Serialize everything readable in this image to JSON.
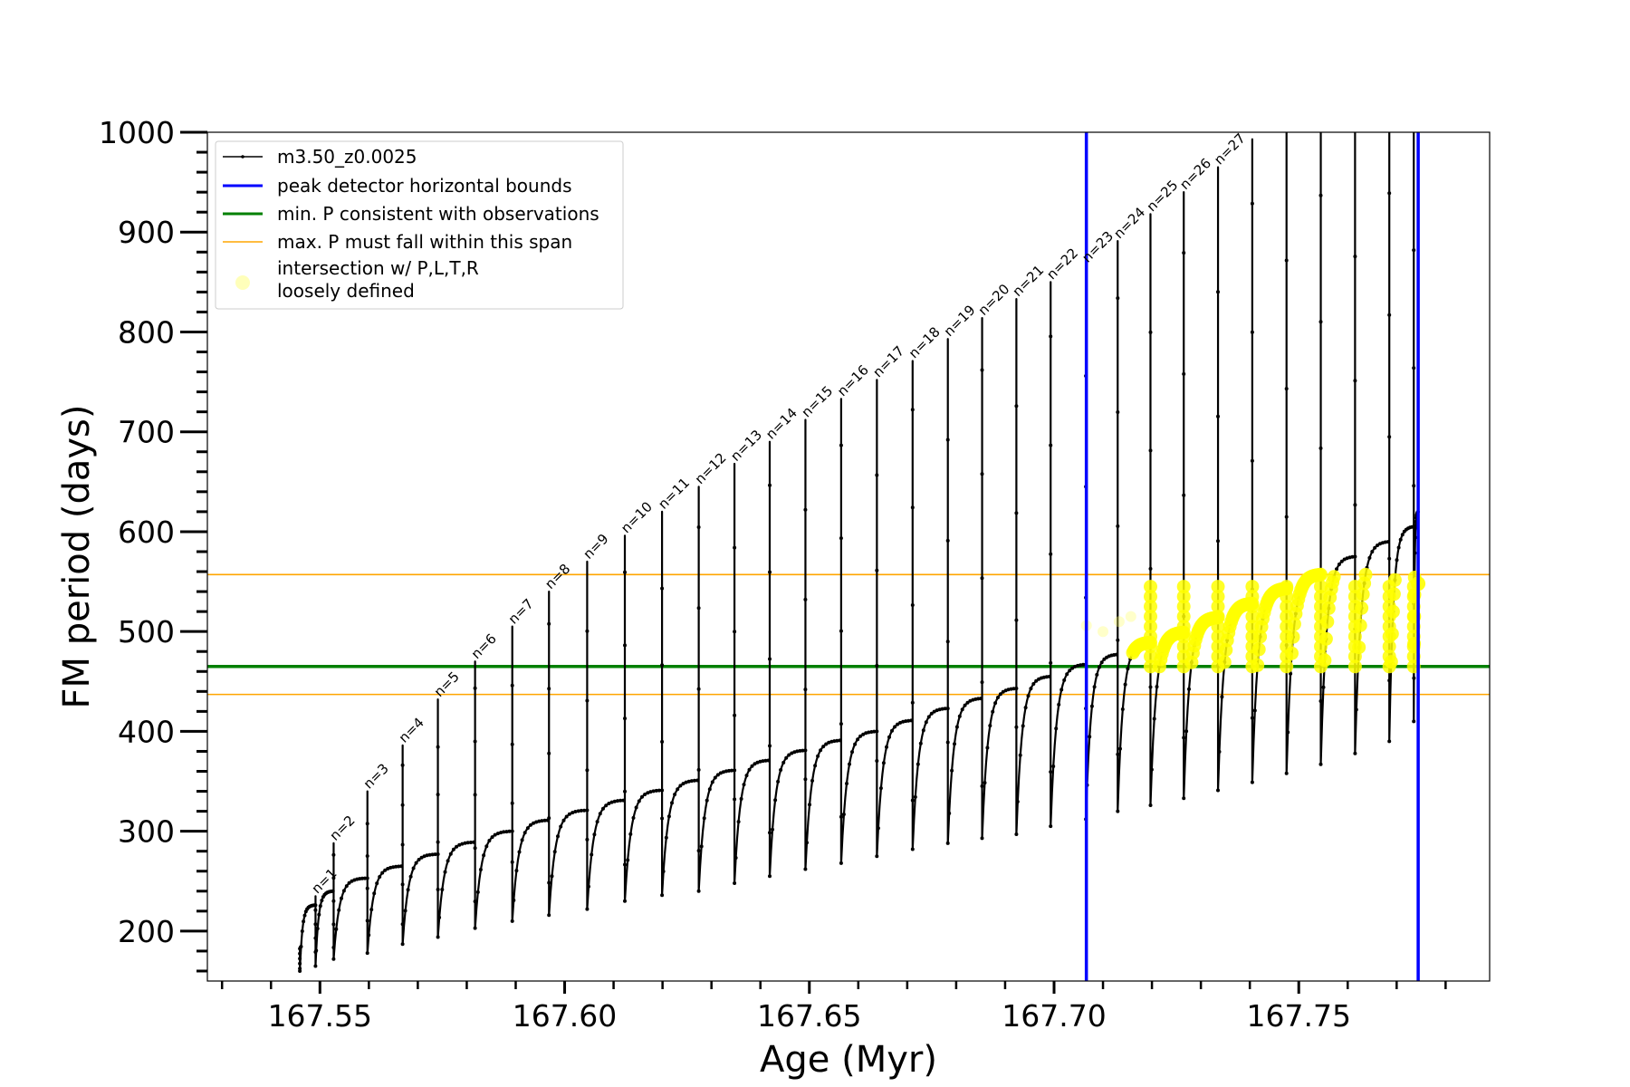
{
  "chart_data": {
    "type": "line",
    "title": "",
    "xlabel": "Age (Myr)",
    "ylabel": "FM period (days)",
    "xlim": [
      167.527,
      167.789
    ],
    "ylim": [
      150,
      1000
    ],
    "x_ticks": [
      "167.55",
      "167.60",
      "167.65",
      "167.70",
      "167.75"
    ],
    "y_ticks": [
      "200",
      "300",
      "400",
      "500",
      "600",
      "700",
      "800",
      "900",
      "1000"
    ],
    "legend": {
      "position": "upper-left",
      "entries": [
        {
          "label": "m3.50_z0.0025",
          "color": "#000000",
          "style": "line-with-dots"
        },
        {
          "label": "peak detector horizontal bounds",
          "color": "#0000ff",
          "style": "thick-line"
        },
        {
          "label": "min. P consistent with observations",
          "color": "#008000",
          "style": "thick-line"
        },
        {
          "label": "max. P must fall within this span",
          "color": "#ffa500",
          "style": "thin-line"
        },
        {
          "label": "intersection w/ P,L,T,R",
          "label2": "loosely defined",
          "color": "#ffff00",
          "style": "dot"
        }
      ]
    },
    "series_main": {
      "name": "m3.50_z0.0025",
      "color": "#000000",
      "pulse_ages": [
        167.5491,
        167.5459,
        167.5528,
        167.5597,
        167.5669,
        167.5741,
        167.5817,
        167.5893,
        167.5968,
        167.6046,
        167.6123,
        167.6199,
        167.6274,
        167.6347,
        167.6419,
        167.6492,
        167.6565,
        167.6638,
        167.6711,
        167.6783,
        167.6853,
        167.6923,
        167.6993,
        167.7065,
        167.713,
        167.7197,
        167.7265,
        167.7335,
        167.7405,
        167.7475,
        167.7545,
        167.7615,
        167.7685,
        167.7735
      ],
      "pulse_peak_P": [
        185,
        235,
        288,
        340,
        386,
        432,
        470,
        505,
        540,
        570,
        596,
        620,
        645,
        668,
        690,
        712,
        733,
        752,
        771,
        793,
        814,
        833,
        850,
        867,
        891,
        918,
        940,
        965,
        993,
        1000,
        1000,
        1000,
        1000,
        1000
      ],
      "pulse_trough_P": [
        160,
        165,
        172,
        178,
        187,
        194,
        203,
        210,
        216,
        222,
        230,
        236,
        240,
        248,
        255,
        262,
        268,
        275,
        282,
        288,
        293,
        297,
        305,
        312,
        320,
        326,
        333,
        341,
        349,
        358,
        367,
        378,
        390,
        410
      ],
      "interpulse_end_P": [
        226,
        240,
        253,
        265,
        277,
        289,
        300,
        311,
        321,
        331,
        341,
        351,
        361,
        371,
        381,
        391,
        400,
        411,
        423,
        433,
        443,
        455,
        467,
        477,
        489,
        499,
        514,
        528,
        543,
        557,
        575,
        590,
        605,
        620
      ],
      "pulse_labels": [
        "n=1",
        "n=2",
        "n=3",
        "n=4",
        "n=5",
        "n=6",
        "n=7",
        "n=8",
        "n=9",
        "n=10",
        "n=11",
        "n=12",
        "n=13",
        "n=14",
        "n=15",
        "n=16",
        "n=17",
        "n=18",
        "n=19",
        "n=20",
        "n=21",
        "n=22",
        "n=23",
        "n=24",
        "n=25",
        "n=26",
        "n=27"
      ]
    },
    "peak_detector_bounds": [
      167.7066,
      167.7744
    ],
    "min_P_observed": 465,
    "max_P_span": [
      437,
      557
    ],
    "intersection_window": [
      437,
      557
    ],
    "colors": {
      "main": "#000000",
      "bounds": "#0000ff",
      "min_p": "#008000",
      "max_span": "#ffa500",
      "intersection": "#ffff00"
    }
  }
}
